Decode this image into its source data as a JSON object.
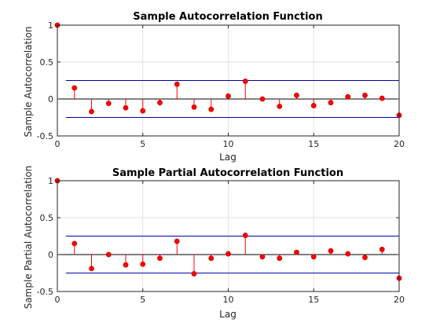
{
  "chart_data": [
    {
      "type": "stem",
      "title": "Sample Autocorrelation Function",
      "xlabel": "Lag",
      "ylabel": "Sample Autocorrelation",
      "xlim": [
        0,
        20
      ],
      "ylim": [
        -0.5,
        1
      ],
      "xticks": [
        "0",
        "5",
        "10",
        "15",
        "20"
      ],
      "yticks": [
        "-0.5",
        "0",
        "0.5",
        "1"
      ],
      "grid": true,
      "lags": [
        0,
        1,
        2,
        3,
        4,
        5,
        6,
        7,
        8,
        9,
        10,
        11,
        12,
        13,
        14,
        15,
        16,
        17,
        18,
        19,
        20
      ],
      "values": [
        1.0,
        0.15,
        -0.17,
        -0.06,
        -0.12,
        -0.16,
        -0.05,
        0.2,
        -0.11,
        -0.14,
        0.04,
        0.24,
        0.0,
        -0.1,
        0.05,
        -0.09,
        -0.05,
        0.03,
        0.05,
        0.01,
        -0.22
      ],
      "confidence_bounds": [
        0.25,
        -0.25
      ],
      "colors": {
        "stem": "#ff0000",
        "bounds": "#0000aa",
        "marker_edge": "#cc0000"
      }
    },
    {
      "type": "stem",
      "title": "Sample Partial Autocorrelation Function",
      "xlabel": "Lag",
      "ylabel": "Sample Partial Autocorrelation",
      "xlim": [
        0,
        20
      ],
      "ylim": [
        -0.5,
        1
      ],
      "xticks": [
        "0",
        "5",
        "10",
        "15",
        "20"
      ],
      "yticks": [
        "-0.5",
        "0",
        "0.5",
        "1"
      ],
      "grid": true,
      "lags": [
        0,
        1,
        2,
        3,
        4,
        5,
        6,
        7,
        8,
        9,
        10,
        11,
        12,
        13,
        14,
        15,
        16,
        17,
        18,
        19,
        20
      ],
      "values": [
        1.0,
        0.15,
        -0.19,
        0.0,
        -0.14,
        -0.13,
        -0.05,
        0.18,
        -0.26,
        -0.05,
        0.01,
        0.26,
        -0.03,
        -0.05,
        0.03,
        -0.03,
        0.05,
        0.01,
        -0.04,
        0.07,
        -0.32
      ],
      "confidence_bounds": [
        0.25,
        -0.25
      ],
      "colors": {
        "stem": "#ff0000",
        "bounds": "#0000aa",
        "marker_edge": "#cc0000"
      }
    }
  ]
}
